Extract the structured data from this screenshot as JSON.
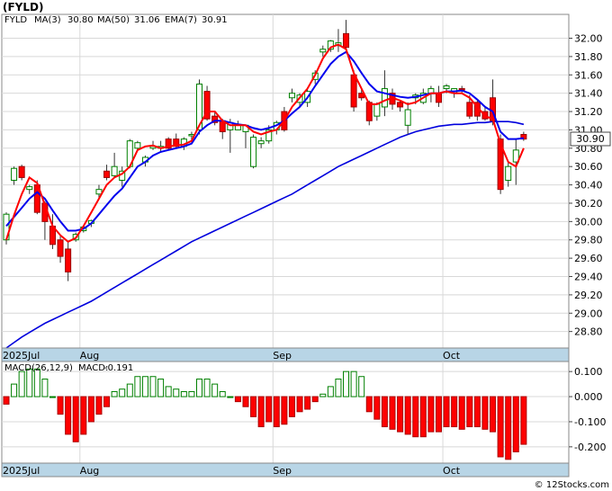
{
  "chart_data": {
    "type": "candlestick",
    "title": "(FYLD)",
    "legend": {
      "symbol": "FYLD",
      "ma3_label": "MA(3)",
      "ma3_value": "30.80",
      "ma50_label": "MA(50)",
      "ma50_value": "31.06",
      "ema7_label": "EMA(7)",
      "ema7_value": "30.91"
    },
    "last_price": "30.90",
    "y_ticks": [
      "32.00",
      "31.80",
      "31.60",
      "31.40",
      "31.20",
      "31.00",
      "30.80",
      "30.60",
      "30.40",
      "30.20",
      "30.00",
      "29.80",
      "29.60",
      "29.40",
      "29.20",
      "29.00",
      "28.80"
    ],
    "ylim": [
      28.62,
      32.26
    ],
    "x_labels": [
      "2025Jul",
      "Aug",
      "Sep",
      "Oct"
    ],
    "x_label_index": [
      0,
      10,
      35,
      57
    ],
    "candles": [
      [
        29.8,
        30.1,
        29.75,
        30.08
      ],
      [
        30.45,
        30.6,
        30.4,
        30.58
      ],
      [
        30.6,
        30.62,
        30.45,
        30.48
      ],
      [
        30.35,
        30.4,
        30.3,
        30.38
      ],
      [
        30.4,
        30.45,
        30.08,
        30.1
      ],
      [
        30.2,
        30.22,
        29.8,
        30.0
      ],
      [
        29.95,
        30.08,
        29.7,
        29.75
      ],
      [
        29.8,
        29.85,
        29.55,
        29.62
      ],
      [
        29.7,
        29.78,
        29.35,
        29.45
      ],
      [
        29.8,
        29.88,
        29.78,
        29.86
      ],
      [
        29.9,
        29.95,
        29.88,
        29.94
      ],
      [
        29.98,
        30.02,
        29.94,
        30.01
      ],
      [
        30.3,
        30.4,
        30.25,
        30.35
      ],
      [
        30.55,
        30.62,
        30.45,
        30.48
      ],
      [
        30.5,
        30.75,
        30.48,
        30.6
      ],
      [
        30.45,
        30.6,
        30.38,
        30.55
      ],
      [
        30.6,
        30.9,
        30.58,
        30.88
      ],
      [
        30.8,
        30.88,
        30.78,
        30.86
      ],
      [
        30.65,
        30.72,
        30.6,
        30.7
      ],
      [
        30.8,
        30.88,
        30.78,
        30.82
      ],
      [
        30.8,
        30.88,
        30.75,
        30.82
      ],
      [
        30.9,
        30.92,
        30.78,
        30.8
      ],
      [
        30.9,
        30.96,
        30.8,
        30.82
      ],
      [
        30.82,
        30.92,
        30.78,
        30.9
      ],
      [
        30.95,
        30.98,
        30.85,
        30.95
      ],
      [
        31.0,
        31.55,
        30.95,
        31.5
      ],
      [
        31.42,
        31.48,
        31.1,
        31.12
      ],
      [
        31.15,
        31.2,
        31.05,
        31.08
      ],
      [
        31.1,
        31.12,
        30.9,
        30.98
      ],
      [
        31.0,
        31.12,
        30.75,
        31.08
      ],
      [
        31.0,
        31.1,
        31.0,
        31.05
      ],
      [
        30.98,
        31.05,
        30.8,
        31.05
      ],
      [
        30.6,
        30.95,
        30.58,
        30.92
      ],
      [
        30.85,
        30.92,
        30.8,
        30.88
      ],
      [
        30.88,
        31.05,
        30.85,
        31.0
      ],
      [
        31.0,
        31.1,
        30.95,
        31.08
      ],
      [
        31.2,
        31.25,
        30.98,
        31.0
      ],
      [
        31.35,
        31.45,
        31.3,
        31.4
      ],
      [
        31.3,
        31.4,
        31.25,
        31.38
      ],
      [
        31.3,
        31.45,
        31.25,
        31.42
      ],
      [
        31.55,
        31.65,
        31.5,
        31.62
      ],
      [
        31.85,
        31.92,
        31.8,
        31.88
      ],
      [
        31.88,
        31.98,
        31.85,
        31.97
      ],
      [
        31.92,
        32.1,
        31.85,
        31.95
      ],
      [
        32.05,
        32.2,
        31.85,
        31.9
      ],
      [
        31.6,
        31.65,
        31.2,
        31.25
      ],
      [
        31.4,
        31.45,
        31.32,
        31.35
      ],
      [
        31.3,
        31.32,
        31.05,
        31.1
      ],
      [
        31.15,
        31.3,
        31.1,
        31.28
      ],
      [
        31.25,
        31.65,
        31.15,
        31.45
      ],
      [
        31.4,
        31.45,
        31.22,
        31.28
      ],
      [
        31.3,
        31.32,
        31.2,
        31.25
      ],
      [
        31.05,
        31.3,
        30.95,
        31.22
      ],
      [
        31.35,
        31.4,
        31.28,
        31.38
      ],
      [
        31.3,
        31.45,
        31.28,
        31.4
      ],
      [
        31.4,
        31.48,
        31.3,
        31.45
      ],
      [
        31.4,
        31.48,
        31.25,
        31.3
      ],
      [
        31.45,
        31.5,
        31.4,
        31.48
      ],
      [
        31.4,
        31.45,
        31.35,
        31.45
      ],
      [
        31.45,
        31.48,
        31.4,
        31.44
      ],
      [
        31.3,
        31.38,
        31.12,
        31.15
      ],
      [
        31.3,
        31.32,
        31.1,
        31.15
      ],
      [
        31.2,
        31.25,
        31.1,
        31.12
      ],
      [
        31.35,
        31.55,
        31.05,
        31.1
      ],
      [
        30.9,
        30.95,
        30.3,
        30.35
      ],
      [
        30.45,
        30.65,
        30.38,
        30.6
      ],
      [
        30.65,
        30.9,
        30.4,
        30.78
      ],
      [
        30.95,
        30.98,
        30.88,
        30.9
      ]
    ],
    "ma3": [
      29.8,
      30.07,
      30.3,
      30.48,
      30.42,
      30.18,
      29.95,
      29.85,
      29.78,
      29.82,
      29.95,
      30.1,
      30.25,
      30.4,
      30.48,
      30.52,
      30.6,
      30.78,
      30.82,
      30.83,
      30.8,
      30.82,
      30.83,
      30.84,
      30.88,
      31.05,
      31.2,
      31.2,
      31.1,
      31.05,
      31.05,
      31.05,
      30.98,
      30.95,
      30.98,
      31.0,
      31.1,
      31.25,
      31.35,
      31.45,
      31.6,
      31.78,
      31.9,
      31.93,
      31.88,
      31.62,
      31.45,
      31.28,
      31.28,
      31.32,
      31.35,
      31.32,
      31.28,
      31.3,
      31.35,
      31.4,
      31.4,
      31.42,
      31.4,
      31.4,
      31.35,
      31.25,
      31.15,
      31.12,
      30.85,
      30.65,
      30.6,
      30.8
    ],
    "ema7": [
      29.95,
      30.05,
      30.15,
      30.25,
      30.32,
      30.25,
      30.12,
      30.0,
      29.9,
      29.9,
      29.92,
      29.98,
      30.08,
      30.18,
      30.28,
      30.36,
      30.48,
      30.6,
      30.65,
      30.72,
      30.76,
      30.78,
      30.8,
      30.82,
      30.85,
      30.98,
      31.05,
      31.1,
      31.1,
      31.08,
      31.06,
      31.05,
      31.02,
      31.0,
      31.02,
      31.05,
      31.1,
      31.18,
      31.25,
      31.35,
      31.48,
      31.6,
      31.72,
      31.8,
      31.85,
      31.75,
      31.62,
      31.5,
      31.42,
      31.4,
      31.38,
      31.36,
      31.35,
      31.36,
      31.38,
      31.4,
      31.4,
      31.42,
      31.42,
      31.43,
      31.4,
      31.33,
      31.25,
      31.2,
      30.98,
      30.9,
      30.9,
      30.91
    ],
    "ma50": [
      28.62,
      28.68,
      28.74,
      28.79,
      28.84,
      28.89,
      28.93,
      28.97,
      29.01,
      29.05,
      29.09,
      29.13,
      29.18,
      29.23,
      29.28,
      29.33,
      29.38,
      29.43,
      29.48,
      29.53,
      29.58,
      29.63,
      29.68,
      29.73,
      29.78,
      29.82,
      29.86,
      29.9,
      29.94,
      29.98,
      30.02,
      30.06,
      30.1,
      30.14,
      30.18,
      30.22,
      30.26,
      30.3,
      30.35,
      30.4,
      30.45,
      30.5,
      30.55,
      30.6,
      30.64,
      30.68,
      30.72,
      30.76,
      30.8,
      30.84,
      30.88,
      30.92,
      30.95,
      30.98,
      31.0,
      31.02,
      31.04,
      31.05,
      31.06,
      31.06,
      31.07,
      31.08,
      31.08,
      31.09,
      31.09,
      31.09,
      31.08,
      31.06
    ],
    "macd_legend": "MACD(26,12,9)",
    "macd_label": "MACD:",
    "macd_value": "-0.191",
    "macd_ticks": [
      "0.100",
      "0.000",
      "-0.100",
      "-0.200"
    ],
    "macd_ylim": [
      -0.265,
      0.14
    ],
    "macd": [
      -0.03,
      0.05,
      0.1,
      0.11,
      0.11,
      0.07,
      0.0,
      -0.07,
      -0.15,
      -0.18,
      -0.15,
      -0.1,
      -0.07,
      -0.04,
      0.02,
      0.03,
      0.05,
      0.08,
      0.08,
      0.08,
      0.07,
      0.04,
      0.03,
      0.02,
      0.02,
      0.07,
      0.07,
      0.05,
      0.02,
      0.0,
      -0.02,
      -0.04,
      -0.08,
      -0.12,
      -0.1,
      -0.12,
      -0.11,
      -0.08,
      -0.06,
      -0.05,
      -0.02,
      0.01,
      0.04,
      0.07,
      0.1,
      0.1,
      0.08,
      -0.06,
      -0.09,
      -0.12,
      -0.13,
      -0.14,
      -0.15,
      -0.16,
      -0.16,
      -0.14,
      -0.14,
      -0.12,
      -0.12,
      -0.13,
      -0.12,
      -0.12,
      -0.13,
      -0.14,
      -0.24,
      -0.25,
      -0.22,
      -0.19
    ],
    "colors": {
      "up": "#008000",
      "down": "#ff0000",
      "ma50": "#0000dd",
      "ema": "#0000ee",
      "ma3": "#ff0000",
      "axis_band": "#b8d5e6",
      "grid": "#d8d8d8"
    },
    "credit": "© 12Stocks.com"
  }
}
